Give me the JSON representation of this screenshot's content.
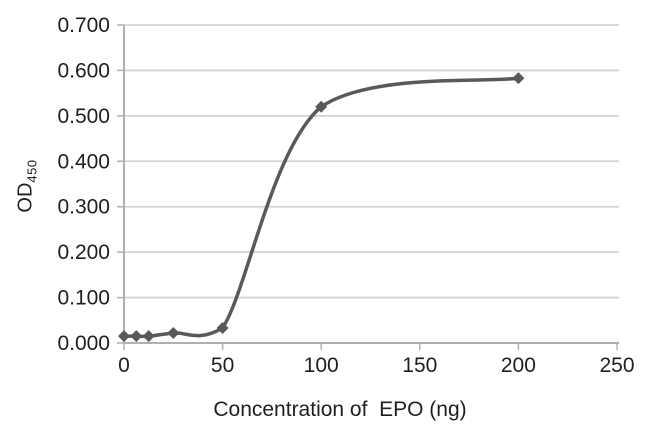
{
  "chart_data": {
    "type": "line",
    "title": "",
    "xlabel": "Concentration of  EPO (ng)",
    "ylabel": "OD",
    "ylabel_sub": "450",
    "x": [
      0,
      6.25,
      12.5,
      25,
      50,
      100,
      200
    ],
    "y": [
      0.015,
      0.015,
      0.015,
      0.022,
      0.033,
      0.52,
      0.583
    ],
    "xlim": [
      0,
      250
    ],
    "ylim": [
      0,
      0.7
    ],
    "x_ticks": [
      0,
      50,
      100,
      150,
      200,
      250
    ],
    "y_ticks": [
      "0.000",
      "0.100",
      "0.200",
      "0.300",
      "0.400",
      "0.500",
      "0.600",
      "0.700"
    ],
    "grid": "horizontal",
    "legend": "none",
    "marker": "diamond",
    "curve": "smoothed",
    "colors": {
      "line": "#595959",
      "marker": "#595959",
      "gridline": "#d4d4d4",
      "axis": "#b0b0b0",
      "text": "#1f1f1f",
      "background": "#ffffff"
    }
  }
}
